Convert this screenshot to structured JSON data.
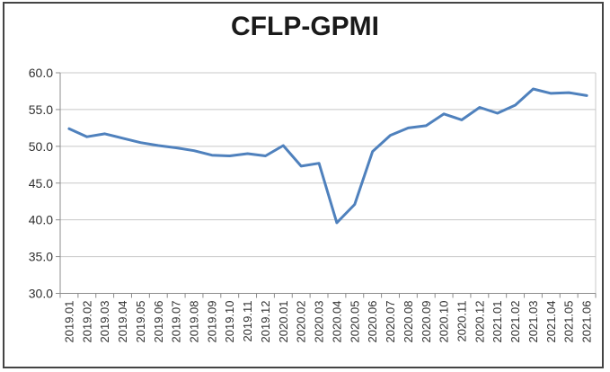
{
  "chart_data": {
    "type": "line",
    "title": "CFLP-GPMI",
    "categories": [
      "2019.01",
      "2019.02",
      "2019.03",
      "2019.04",
      "2019.05",
      "2019.06",
      "2019.07",
      "2019.08",
      "2019.09",
      "2019.10",
      "2019.11",
      "2019.12",
      "2020.01",
      "2020.02",
      "2020.03",
      "2020.04",
      "2020.05",
      "2020.06",
      "2020.07",
      "2020.08",
      "2020.09",
      "2020.10",
      "2020.11",
      "2020.12",
      "2021.01",
      "2021.02",
      "2021.03",
      "2021.04",
      "2021.05",
      "2021.06"
    ],
    "series": [
      {
        "name": "CFLP-GPMI",
        "values": [
          52.4,
          51.3,
          51.7,
          51.1,
          50.5,
          50.1,
          49.8,
          49.4,
          48.8,
          48.7,
          49.0,
          48.7,
          50.1,
          47.3,
          47.7,
          39.6,
          42.1,
          49.3,
          51.5,
          52.5,
          52.8,
          54.4,
          53.6,
          55.3,
          54.5,
          55.6,
          57.8,
          57.2,
          57.3,
          56.9
        ]
      }
    ],
    "xlabel": "",
    "ylabel": "",
    "ylim": [
      30,
      60
    ],
    "ytick_step": 5,
    "y_tick_labels": [
      "30.0",
      "35.0",
      "40.0",
      "45.0",
      "50.0",
      "55.0",
      "60.0"
    ],
    "grid": true,
    "legend": "none",
    "colors": {
      "line": "#4f81bd",
      "gridline": "#c8c8c8",
      "axis": "#8c8c8c",
      "tick_text": "#303030",
      "title_text": "#1a1a1a",
      "frame_border": "#444444",
      "background": "#ffffff"
    }
  }
}
